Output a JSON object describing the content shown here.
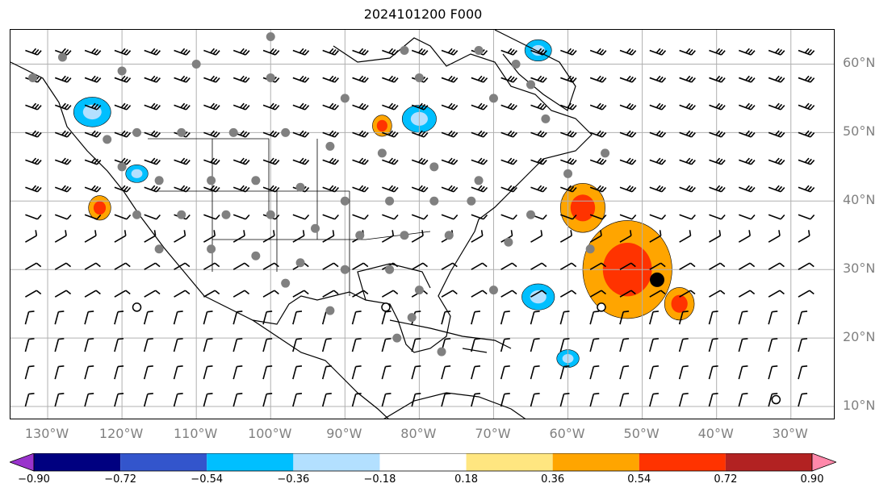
{
  "title": "2024101200 F000",
  "map": {
    "lat_labels": [
      "60°N",
      "50°N",
      "40°N",
      "30°N",
      "20°N",
      "10°N"
    ],
    "lat_values": [
      60,
      50,
      40,
      30,
      20,
      10
    ],
    "lon_labels": [
      "130°W",
      "120°W",
      "110°W",
      "100°W",
      "90°W",
      "80°W",
      "70°W",
      "60°W",
      "50°W",
      "40°W",
      "30°W"
    ],
    "lon_values": [
      -130,
      -120,
      -110,
      -100,
      -90,
      -80,
      -70,
      -60,
      -50,
      -40,
      -30
    ],
    "extent": {
      "lon_min": -135,
      "lon_max": -24,
      "lat_min": 8,
      "lat_max": 65
    },
    "gridlines": true,
    "feature_markers": [
      {
        "type": "filled-dot",
        "lon": -48,
        "lat": 28.5,
        "color": "#000000"
      },
      {
        "type": "open-circle",
        "lon": -118,
        "lat": 24.5
      },
      {
        "type": "open-circle",
        "lon": -84.5,
        "lat": 24.5
      },
      {
        "type": "open-circle",
        "lon": -55.5,
        "lat": 24.5
      },
      {
        "type": "open-circle",
        "lon": -32,
        "lat": 11
      }
    ],
    "positive_contour_regions": [
      {
        "lon": -52,
        "lat": 30,
        "r": 6
      },
      {
        "lon": -58,
        "lat": 39,
        "r": 3
      },
      {
        "lon": -45,
        "lat": 25,
        "r": 2
      },
      {
        "lon": -123,
        "lat": 39,
        "r": 1.5
      },
      {
        "lon": -85,
        "lat": 51,
        "r": 1.3
      }
    ],
    "negative_contour_regions": [
      {
        "lon": -124,
        "lat": 53,
        "r": 2.5
      },
      {
        "lon": -118,
        "lat": 44,
        "r": 1.5
      },
      {
        "lon": -64,
        "lat": 26,
        "r": 2.2
      },
      {
        "lon": -60,
        "lat": 17,
        "r": 1.5
      },
      {
        "lon": -80,
        "lat": 52,
        "r": 2.3
      },
      {
        "lon": -64,
        "lat": 62,
        "r": 1.8
      }
    ],
    "colors": {
      "grid": "#b0b0b0",
      "coast": "#000000",
      "station": "#808080"
    }
  },
  "colorbar": {
    "levels": [
      "−0.90",
      "−0.72",
      "−0.54",
      "−0.36",
      "−0.18",
      "0.18",
      "0.36",
      "0.54",
      "0.72",
      "0.90"
    ],
    "colors": [
      "#9933cc",
      "#000080",
      "#3355cc",
      "#00bfff",
      "#b3e0ff",
      "#ffffff",
      "#ffe680",
      "#ffa500",
      "#ff3300",
      "#b22222",
      "#ff88aa"
    ]
  }
}
